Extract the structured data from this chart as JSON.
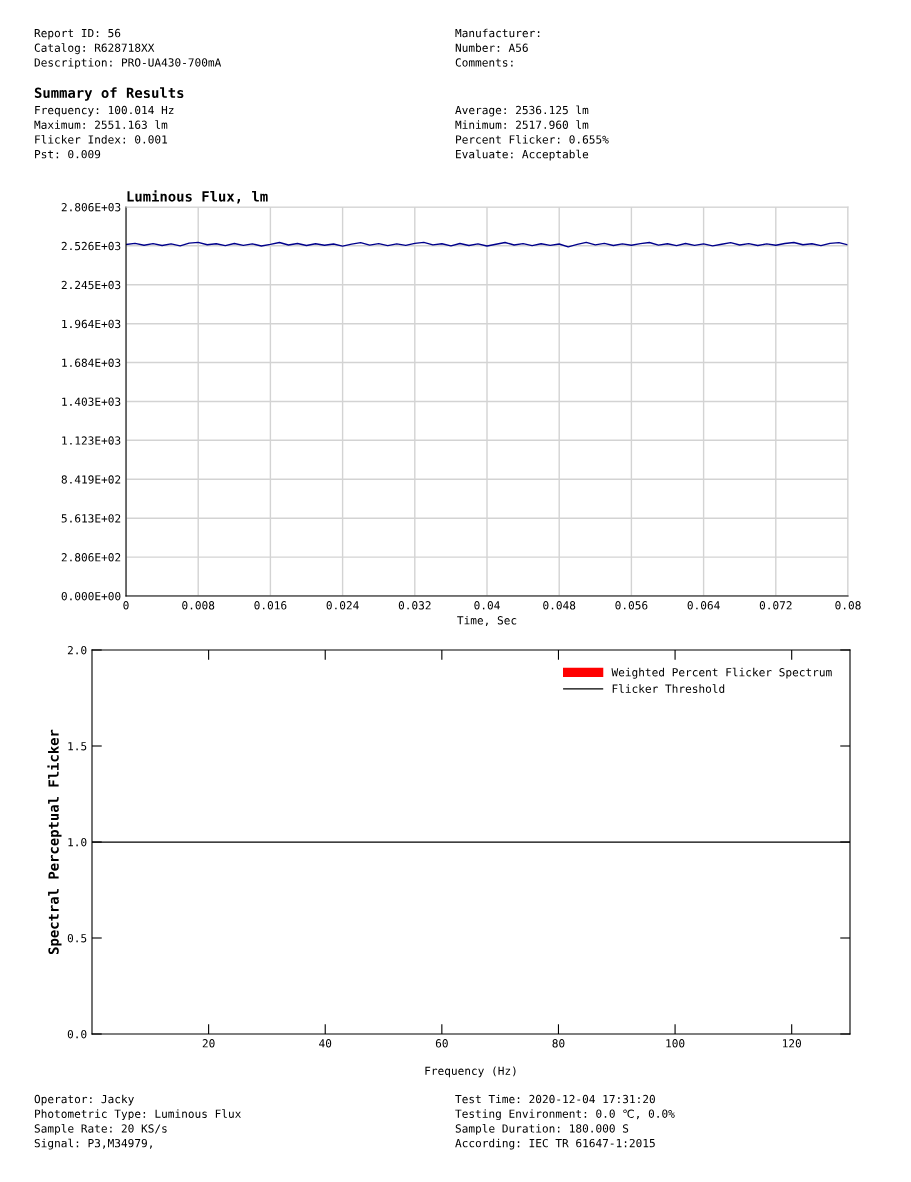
{
  "chart_data": [
    {
      "type": "other",
      "annotations": [
        "Report ID: 56",
        "Catalog: R628718XX",
        "Description: PRO-UA430-700mA",
        "Manufacturer:",
        "Number: A56",
        "Comments:"
      ]
    },
    {
      "type": "other",
      "title": "Summary of Results",
      "annotations": [
        "Frequency: 100.014 Hz",
        "Maximum: 2551.163 lm",
        "Flicker Index: 0.001",
        "Pst: 0.009",
        "Average: 2536.125 lm",
        "Minimum: 2517.960 lm",
        "Percent Flicker: 0.655%",
        "Evaluate: Acceptable"
      ]
    },
    {
      "type": "line",
      "title": "Luminous Flux, lm",
      "xlabel": "Time, Sec",
      "grid": true,
      "marker": "none",
      "line_style": "solid",
      "xlim": [
        0,
        0.08
      ],
      "xticks": [
        0,
        0.008,
        0.016,
        0.024,
        0.032,
        0.04,
        0.048,
        0.056,
        0.064,
        0.072,
        0.08
      ],
      "ylim": [
        0,
        2806
      ],
      "yticks": [
        {
          "value": 0,
          "label": "0.000E+00"
        },
        {
          "value": 280.6,
          "label": "2.806E+02"
        },
        {
          "value": 561.3,
          "label": "5.613E+02"
        },
        {
          "value": 841.9,
          "label": "8.419E+02"
        },
        {
          "value": 1123,
          "label": "1.123E+03"
        },
        {
          "value": 1403,
          "label": "1.403E+03"
        },
        {
          "value": 1684,
          "label": "1.684E+03"
        },
        {
          "value": 1964,
          "label": "1.964E+03"
        },
        {
          "value": 2245,
          "label": "2.245E+03"
        },
        {
          "value": 2526,
          "label": "2.526E+03"
        },
        {
          "value": 2806,
          "label": "2.806E+03"
        }
      ],
      "series": [
        {
          "color": "#00008b",
          "x": [
            0,
            0.001,
            0.002,
            0.003,
            0.004,
            0.005,
            0.006,
            0.007,
            0.008,
            0.009,
            0.01,
            0.011,
            0.012,
            0.013,
            0.014,
            0.015,
            0.016,
            0.017,
            0.018,
            0.019,
            0.02,
            0.021,
            0.022,
            0.023,
            0.024,
            0.025,
            0.026,
            0.027,
            0.028,
            0.029,
            0.03,
            0.031,
            0.032,
            0.033,
            0.034,
            0.035,
            0.036,
            0.037,
            0.038,
            0.039,
            0.04,
            0.041,
            0.042,
            0.043,
            0.044,
            0.045,
            0.046,
            0.047,
            0.048,
            0.049,
            0.05,
            0.051,
            0.052,
            0.053,
            0.054,
            0.055,
            0.056,
            0.057,
            0.058,
            0.059,
            0.06,
            0.061,
            0.062,
            0.063,
            0.064,
            0.065,
            0.066,
            0.067,
            0.068,
            0.069,
            0.07,
            0.071,
            0.072,
            0.073,
            0.074,
            0.075,
            0.076,
            0.077,
            0.078,
            0.079,
            0.08
          ],
          "values": [
            2536,
            2544,
            2530,
            2542,
            2528,
            2540,
            2526,
            2545,
            2551,
            2534,
            2541,
            2527,
            2543,
            2529,
            2540,
            2525,
            2536,
            2550,
            2532,
            2543,
            2528,
            2541,
            2530,
            2539,
            2524,
            2538,
            2549,
            2531,
            2542,
            2527,
            2540,
            2529,
            2544,
            2551,
            2533,
            2541,
            2526,
            2543,
            2528,
            2540,
            2525,
            2537,
            2550,
            2532,
            2542,
            2527,
            2541,
            2529,
            2539,
            2518,
            2536,
            2551,
            2533,
            2544,
            2528,
            2540,
            2530,
            2542,
            2550,
            2531,
            2541,
            2527,
            2543,
            2529,
            2540,
            2526,
            2537,
            2549,
            2532,
            2542,
            2528,
            2540,
            2530,
            2543,
            2550,
            2534,
            2541,
            2527,
            2544,
            2549,
            2533
          ]
        }
      ]
    },
    {
      "type": "line",
      "xlabel": "Frequency (Hz)",
      "ylabel": "Spectral Perceptual Flicker",
      "grid": false,
      "legend": "top right",
      "xlim": [
        0,
        130
      ],
      "xticks": [
        20,
        40,
        60,
        80,
        100,
        120
      ],
      "ylim": [
        0,
        2
      ],
      "yticks": [
        {
          "value": 0,
          "label": "0.0"
        },
        {
          "value": 0.5,
          "label": "0.5"
        },
        {
          "value": 1,
          "label": "1.0"
        },
        {
          "value": 1.5,
          "label": "1.5"
        },
        {
          "value": 2,
          "label": "2.0"
        }
      ],
      "series": [
        {
          "name": "Weighted Percent Flicker Spectrum",
          "type": "bar",
          "color": "#ff0000",
          "x": [
            100
          ],
          "values": [
            0
          ]
        }
      ],
      "ref_lines": [
        {
          "axis": "y",
          "value": 1,
          "label": "Flicker Threshold",
          "color": "#000000",
          "line_style": "solid"
        }
      ]
    },
    {
      "type": "other",
      "annotations": [
        "Operator: Jacky",
        "Photometric Type: Luminous Flux",
        "Sample Rate: 20 KS/s",
        "Signal: P3,M34979,",
        "Test Time: 2020-12-04 17:31:20",
        "Testing Environment: 0.0 ℃, 0.0%",
        "Sample Duration: 180.000 S",
        "According: IEC TR 61647-1:2015"
      ]
    }
  ]
}
